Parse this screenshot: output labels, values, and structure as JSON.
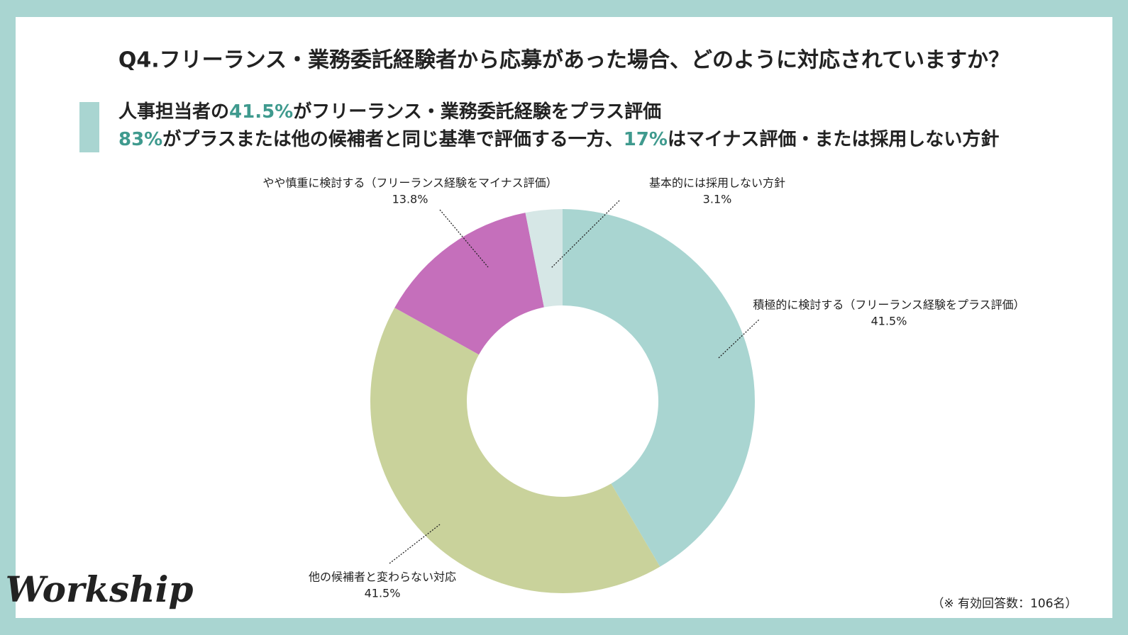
{
  "header": {
    "title": "Q4.フリーランス・業務委託経験者から応募があった場合、どのように対応されていますか？",
    "emphasis_color": "#3f9a8e",
    "lines": [
      [
        {
          "text": "人事担当者の",
          "emphasis": false
        },
        {
          "text": "41.5%",
          "emphasis": true
        },
        {
          "text": "がフリーランス・業務委託経験をプラス評価",
          "emphasis": false
        }
      ],
      [
        {
          "text": "83%",
          "emphasis": true
        },
        {
          "text": "がプラスまたは他の候補者と同じ基準で評価する一方、",
          "emphasis": false
        },
        {
          "text": "17%",
          "emphasis": true
        },
        {
          "text": "はマイナス評価・または採用しない方針",
          "emphasis": false
        }
      ]
    ]
  },
  "chart_data": {
    "type": "pie",
    "donut": true,
    "categories": [
      "積極的に検討する（フリーランス経験をプラス評価）",
      "他の候補者と変わらない対応",
      "やや慎重に検討する（フリーランス経験をマイナス評価）",
      "基本的には採用しない方針"
    ],
    "values": [
      41.5,
      41.5,
      13.8,
      3.1
    ],
    "value_labels": [
      "41.5%",
      "41.5%",
      "13.8%",
      "3.1%"
    ],
    "colors": [
      "#a9d5d1",
      "#c9d29b",
      "#c56fbb",
      "#d6e7e6"
    ]
  },
  "footnote": "（※ 有効回答数：106名）",
  "logo": "Workship"
}
